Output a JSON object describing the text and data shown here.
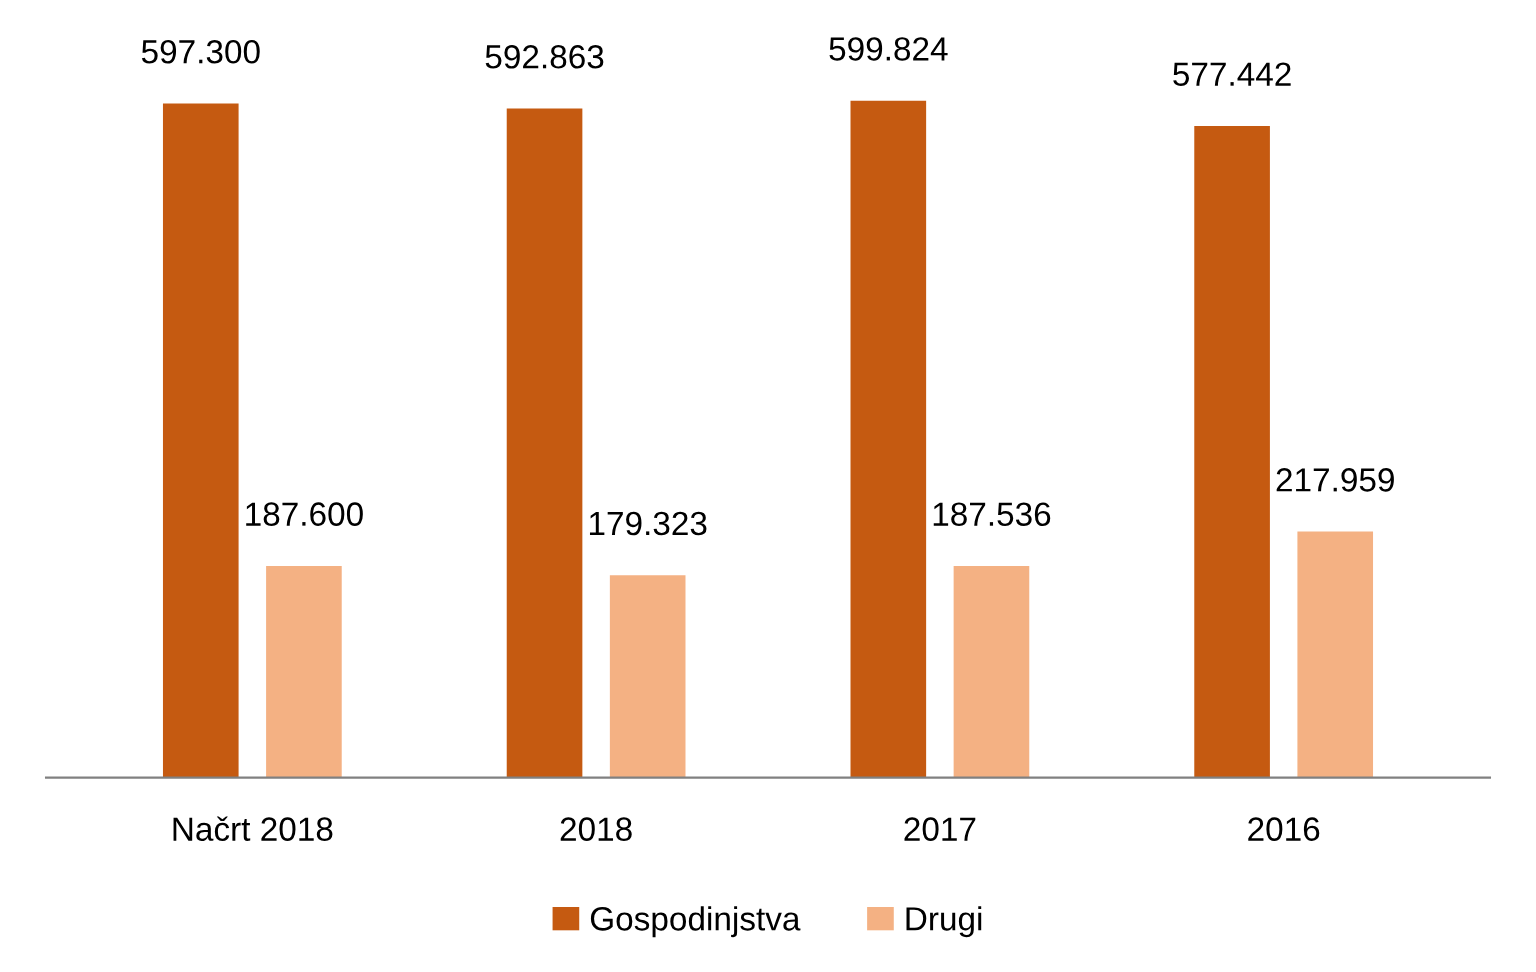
{
  "chart_data": {
    "type": "bar",
    "categories": [
      "Načrt 2018",
      "2018",
      "2017",
      "2016"
    ],
    "series": [
      {
        "name": "Gospodinjstva",
        "color": "#c55a11",
        "values": [
          597.3,
          592.863,
          599.824,
          577.442
        ],
        "value_labels": [
          "597.300",
          "592.863",
          "599.824",
          "577.442"
        ]
      },
      {
        "name": "Drugi",
        "color": "#f4b183",
        "values": [
          187.6,
          179.323,
          187.536,
          217.959
        ],
        "value_labels": [
          "187.600",
          "179.323",
          "187.536",
          "217.959"
        ]
      }
    ],
    "legend": "bottom",
    "grid": false
  }
}
